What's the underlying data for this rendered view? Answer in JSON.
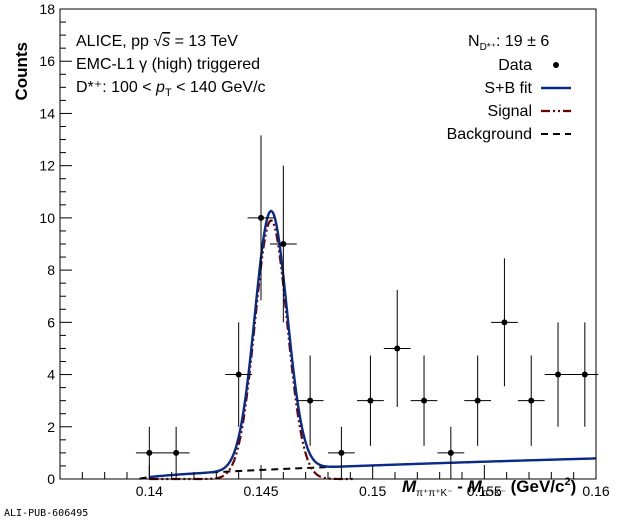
{
  "chart_data": {
    "type": "scatter",
    "ylabel": "Counts",
    "xlabel_parts": {
      "m1": "M",
      "sub1": "π⁺π⁺K⁻",
      "minus": " - ",
      "m2": "M",
      "sub2": "π⁺K⁻",
      "unit": " (GeV/c",
      "sup": "2",
      "close": ")"
    },
    "xlim": [
      0.136,
      0.16
    ],
    "ylim": [
      0,
      18
    ],
    "x_ticks": [
      0.14,
      0.145,
      0.15,
      0.155,
      0.16
    ],
    "x_tick_labels": [
      "0.14",
      "0.145",
      "0.15",
      "0.155",
      "0.16"
    ],
    "y_ticks": [
      0,
      2,
      4,
      6,
      8,
      10,
      12,
      14,
      16,
      18
    ],
    "y_tick_labels": [
      "0",
      "2",
      "4",
      "6",
      "8",
      "10",
      "12",
      "14",
      "16",
      "18"
    ],
    "info_lines": {
      "l1_a": "ALICE, pp ",
      "l1_sqrt": "√",
      "l1_s": "s",
      "l1_b": " = 13 TeV",
      "l2": "EMC-L1 γ (high) triggered",
      "l3_a": "D*⁺: 100 < ",
      "l3_p": "p",
      "l3_sub": "T",
      "l3_b": " < 140 GeV/c"
    },
    "nd_text": {
      "n": "N",
      "sub": "D*⁺",
      "val": ": 19 ± 6"
    },
    "legend_position": "top-right",
    "legend": [
      {
        "label": "Data",
        "style": "marker"
      },
      {
        "label": "S+B fit",
        "style": "solid",
        "color": "#0a2a8a"
      },
      {
        "label": "Signal",
        "style": "dashdotdot",
        "color": "#6b0000"
      },
      {
        "label": "Background",
        "style": "dashed",
        "color": "#000000"
      }
    ],
    "series": [
      {
        "name": "Data",
        "x": [
          0.14,
          0.1412,
          0.144,
          0.145,
          0.146,
          0.1472,
          0.1486,
          0.1499,
          0.1511,
          0.1523,
          0.1535,
          0.1547,
          0.1559,
          0.1571,
          0.1583,
          0.1595
        ],
        "y": [
          1,
          1,
          4,
          10,
          9,
          3,
          1,
          3,
          5,
          3,
          1,
          3,
          6,
          3,
          4,
          4
        ],
        "yerr": [
          1.0,
          1.0,
          2.0,
          3.16,
          3.0,
          1.73,
          1.0,
          1.73,
          2.24,
          1.73,
          1.0,
          1.73,
          2.45,
          1.73,
          2.0,
          2.0
        ],
        "xerr": 0.0006
      }
    ],
    "fit": {
      "bkg_threshold": 0.13957,
      "bkg_a": 8.8,
      "bkg_b": 0.62,
      "signal_mean": 0.14545,
      "signal_sigma": 0.00072,
      "signal_amp": 9.9,
      "fit_start": 0.14
    },
    "colors": {
      "sb": "#0a2a8a",
      "signal": "#6b0000",
      "bkg": "#000000",
      "data": "#000000"
    },
    "pub_id": "ALI-PUB-606495"
  }
}
